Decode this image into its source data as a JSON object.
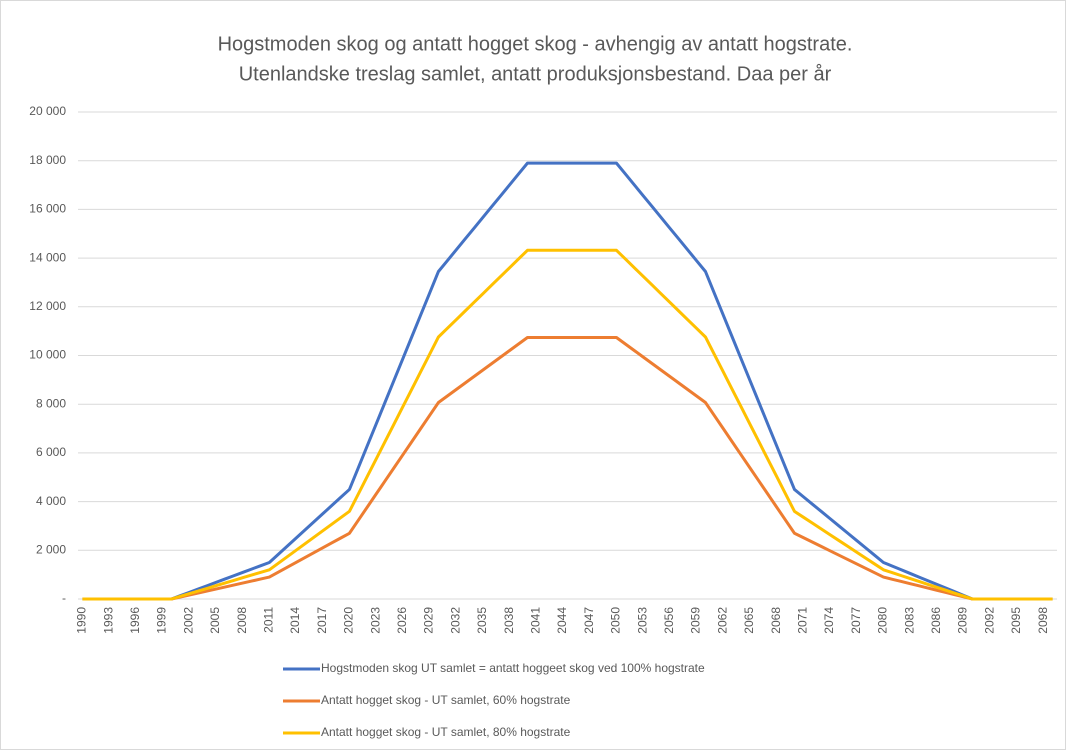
{
  "chart_data": {
    "type": "line",
    "title": [
      "Hogstmoden skog og antatt hogget skog - avhengig av antatt hogstrate.",
      "Utenlandske treslag samlet, antatt produksjonsbestand.  Daa per år"
    ],
    "categories": [
      "1990",
      null,
      null,
      "1993",
      null,
      null,
      "1996",
      null,
      null,
      "1999",
      null,
      null,
      "2002",
      null,
      null,
      "2005",
      null,
      null,
      "2008",
      null,
      null,
      "2011",
      null,
      null,
      "2014",
      null,
      null,
      "2017",
      null,
      null,
      "2020",
      null,
      null,
      "2023",
      null,
      null,
      "2026",
      null,
      null,
      "2029",
      null,
      null,
      "2032",
      null,
      null,
      "2035",
      null,
      null,
      "2038",
      null,
      null,
      "2041",
      null,
      null,
      "2044",
      null,
      null,
      "2047",
      null,
      null,
      "2050",
      null,
      null,
      "2053",
      null,
      null,
      "2056",
      null,
      null,
      "2059",
      null,
      null,
      "2062",
      null,
      null,
      "2065",
      null,
      null,
      "2068",
      null,
      null,
      "2071",
      null,
      null,
      "2074",
      null,
      null,
      "2077",
      null,
      null,
      "2080",
      null,
      null,
      "2083",
      null,
      null,
      "2086",
      null,
      null,
      "2089",
      null,
      null,
      "2092",
      null,
      null,
      "2095",
      null,
      null,
      "2098",
      null
    ],
    "series": [
      {
        "name": "Hogstmoden skog UT samlet = antatt hoggeet skog ved 100% hogstrate",
        "color": "#4472c4",
        "values": [
          0,
          0,
          0,
          0,
          0,
          0,
          0,
          0,
          0,
          0,
          0,
          136,
          273,
          409,
          545,
          682,
          818,
          955,
          1091,
          1227,
          1364,
          1500,
          1833,
          2167,
          2500,
          2833,
          3167,
          3500,
          3833,
          4167,
          4500,
          5395,
          6290,
          7185,
          8080,
          8975,
          9870,
          10765,
          11660,
          12555,
          13450,
          13895,
          14340,
          14785,
          15230,
          15675,
          16120,
          16565,
          17010,
          17455,
          17900,
          17900,
          17900,
          17900,
          17900,
          17900,
          17900,
          17900,
          17900,
          17900,
          17900,
          17455,
          17010,
          16565,
          16120,
          15675,
          15230,
          14785,
          14340,
          13895,
          13450,
          12555,
          11660,
          10765,
          9870,
          8975,
          8080,
          7185,
          6290,
          5395,
          4500,
          4200,
          3900,
          3600,
          3300,
          3000,
          2700,
          2400,
          2100,
          1800,
          1500,
          1350,
          1200,
          1050,
          900,
          750,
          600,
          450,
          300,
          150,
          0,
          0,
          0,
          0,
          0,
          0,
          0,
          0,
          0,
          0
        ]
      },
      {
        "name": "Antatt hogget skog - UT samlet, 60% hogstrate",
        "color": "#ed7d31",
        "values": [
          0,
          0,
          0,
          0,
          0,
          0,
          0,
          0,
          0,
          0,
          0,
          82,
          164,
          245,
          327,
          409,
          491,
          573,
          655,
          736,
          818,
          900,
          1100,
          1300,
          1500,
          1700,
          1900,
          2100,
          2300,
          2500,
          2700,
          3237,
          3774,
          4311,
          4848,
          5385,
          5922,
          6459,
          6996,
          7533,
          8070,
          8337,
          8604,
          8871,
          9138,
          9405,
          9672,
          9939,
          10206,
          10473,
          10740,
          10740,
          10740,
          10740,
          10740,
          10740,
          10740,
          10740,
          10740,
          10740,
          10740,
          10473,
          10206,
          9939,
          9672,
          9405,
          9138,
          8871,
          8604,
          8337,
          8070,
          7533,
          6996,
          6459,
          5922,
          5385,
          4848,
          4311,
          3774,
          3237,
          2700,
          2520,
          2340,
          2160,
          1980,
          1800,
          1620,
          1440,
          1260,
          1080,
          900,
          810,
          720,
          630,
          540,
          450,
          360,
          270,
          180,
          90,
          0,
          0,
          0,
          0,
          0,
          0,
          0,
          0,
          0,
          0
        ]
      },
      {
        "name": "Antatt hogget skog - UT samlet, 80% hogstrate",
        "color": "#ffc000",
        "values": [
          0,
          0,
          0,
          0,
          0,
          0,
          0,
          0,
          0,
          0,
          0,
          109,
          218,
          327,
          436,
          545,
          655,
          764,
          873,
          982,
          1091,
          1200,
          1467,
          1733,
          2000,
          2267,
          2533,
          2800,
          3067,
          3333,
          3600,
          4316,
          5032,
          5748,
          6464,
          7180,
          7896,
          8612,
          9328,
          10044,
          10760,
          11116,
          11472,
          11828,
          12184,
          12540,
          12896,
          13252,
          13608,
          13964,
          14320,
          14320,
          14320,
          14320,
          14320,
          14320,
          14320,
          14320,
          14320,
          14320,
          14320,
          13964,
          13608,
          13252,
          12896,
          12540,
          12184,
          11828,
          11472,
          11116,
          10760,
          10044,
          9328,
          8612,
          7896,
          7180,
          6464,
          5748,
          5032,
          4316,
          3600,
          3360,
          3120,
          2880,
          2640,
          2400,
          2160,
          1920,
          1680,
          1440,
          1200,
          1080,
          960,
          840,
          720,
          600,
          480,
          360,
          240,
          120,
          0,
          0,
          0,
          0,
          0,
          0,
          0,
          0,
          0,
          0
        ]
      }
    ],
    "ylim": [
      0,
      20000
    ],
    "yticks": [
      {
        "value": 0,
        "label": "-"
      },
      {
        "value": 2000,
        "label": "2 000"
      },
      {
        "value": 4000,
        "label": "4 000"
      },
      {
        "value": 6000,
        "label": "6 000"
      },
      {
        "value": 8000,
        "label": "8 000"
      },
      {
        "value": 10000,
        "label": "10 000"
      },
      {
        "value": 12000,
        "label": "12 000"
      },
      {
        "value": 14000,
        "label": "14 000"
      },
      {
        "value": 16000,
        "label": "16 000"
      },
      {
        "value": 18000,
        "label": "18 000"
      },
      {
        "value": 20000,
        "label": "20 000"
      }
    ],
    "grid": true,
    "legend": "bottom"
  }
}
